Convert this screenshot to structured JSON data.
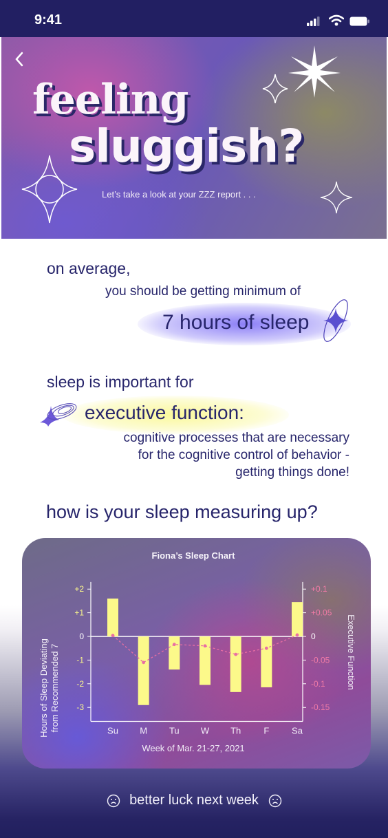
{
  "status_bar": {
    "time": "9:41"
  },
  "hero": {
    "title_line1": "feeling",
    "title_line2": "sluggish?",
    "subtitle": "Let’s take a look at your ZZZ report . . ."
  },
  "content": {
    "average_label": "on average,",
    "should_label": "you should be getting minimum of",
    "hours_label": "7 hours of sleep",
    "important_label": "sleep is important for",
    "exec_label": "executive function:",
    "definition": [
      "cognitive processes that are necessary",
      "for the cognitive control of behavior -",
      "getting things done!"
    ],
    "measure_label": "how is your sleep measuring up?"
  },
  "chart_data": {
    "type": "bar",
    "title": "Fiona’s Sleep Chart",
    "xlabel": "Week of Mar. 21-27, 2021",
    "ylabel": "Hours of Sleep Deviating from Recommended 7",
    "ylabel_lines": [
      "Hours of Sleep Deviating",
      "from Recommended 7"
    ],
    "y2label": "Executive Function",
    "categories": [
      "Su",
      "M",
      "Tu",
      "W",
      "Th",
      "F",
      "Sa"
    ],
    "ylim": [
      -3.3,
      2.3
    ],
    "y_ticks": [
      "+2",
      "+1",
      "0",
      "-1",
      "-2",
      "-3"
    ],
    "y_tick_values": [
      2,
      1,
      0,
      -1,
      -2,
      -3
    ],
    "y2_ticks": [
      "+0.1",
      "+0.05",
      "0",
      "-0.05",
      "-0.1",
      "-0.15"
    ],
    "y2_tick_values": [
      0.1,
      0.05,
      0,
      -0.05,
      -0.1,
      -0.15
    ],
    "series": [
      {
        "values": [
          1.6,
          -2.9,
          -1.4,
          -2.05,
          -2.35,
          -2.15,
          1.45
        ]
      },
      {
        "values": [
          0.002,
          -0.055,
          -0.017,
          -0.02,
          -0.038,
          -0.025,
          0.003
        ]
      }
    ],
    "bar_color": "#fcf98a",
    "line_color": "#e96fa3",
    "axis_color_left": "#fbf78c",
    "axis_color_right": "#f07aa6"
  },
  "footer": {
    "message": "better luck next week"
  }
}
